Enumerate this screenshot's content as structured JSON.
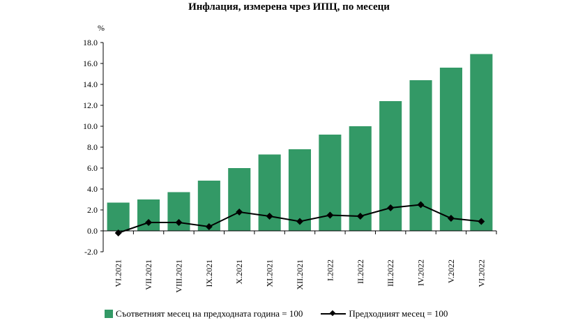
{
  "chart_data": {
    "type": "bar",
    "title": "Инфлация, измерена чрез ИПЦ, по месеци",
    "ylabel": "%",
    "xlabel": "",
    "ylim": [
      -2.0,
      18.0
    ],
    "yticks": [
      "-2.0",
      "0.0",
      "2.0",
      "4.0",
      "6.0",
      "8.0",
      "10.0",
      "12.0",
      "14.0",
      "16.0",
      "18.0"
    ],
    "categories": [
      "VI.2021",
      "VII.2021",
      "VIII.2021",
      "IX.2021",
      "X.2021",
      "XI.2021",
      "XII.2021",
      "I.2022",
      "II.2022",
      "III.2022",
      "IV.2022",
      "V.2022",
      "VI.2022"
    ],
    "series": [
      {
        "name": "Съответният месец на предходната година = 100",
        "type": "bar",
        "color": "#339966",
        "values": [
          2.7,
          3.0,
          3.7,
          4.8,
          6.0,
          7.3,
          7.8,
          9.2,
          10.0,
          12.4,
          14.4,
          15.6,
          16.9
        ]
      },
      {
        "name": "Предходният месец = 100",
        "type": "line",
        "color": "#000000",
        "values": [
          -0.2,
          0.8,
          0.8,
          0.4,
          1.8,
          1.4,
          0.9,
          1.5,
          1.4,
          2.2,
          2.5,
          1.2,
          0.9
        ]
      }
    ],
    "grid": false,
    "legend_position": "bottom"
  }
}
